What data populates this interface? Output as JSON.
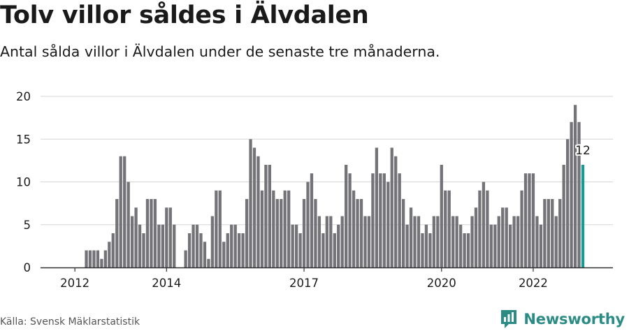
{
  "title": "Tolv villor såldes i Älvdalen",
  "subtitle": "Antal sålda villor i Älvdalen under de senaste tre månaderna.",
  "source": "Källa: Svensk Mäklarstatistik",
  "brand": {
    "name": "Newsworthy",
    "icon": "newsworthy-logo-icon"
  },
  "colors": {
    "bar": "#747378",
    "highlight": "#1a9a93",
    "grid": "#d6d6d6",
    "axis": "#333333",
    "brand": "#2b8c86"
  },
  "chart_data": {
    "type": "bar",
    "title": "",
    "xlabel": "",
    "ylabel": "",
    "ylim": [
      0,
      20
    ],
    "y_ticks": [
      "0",
      "5",
      "10",
      "15",
      "20"
    ],
    "x_tick_labels": [
      {
        "label": "2012",
        "index": 3
      },
      {
        "label": "2014",
        "index": 27
      },
      {
        "label": "2017",
        "index": 63
      },
      {
        "label": "2020",
        "index": 99
      },
      {
        "label": "2022",
        "index": 123
      }
    ],
    "grid": true,
    "values": [
      0,
      0,
      0,
      0,
      0,
      0,
      2,
      2,
      2,
      2,
      1,
      2,
      3,
      4,
      8,
      13,
      13,
      10,
      6,
      7,
      5,
      4,
      8,
      8,
      8,
      5,
      5,
      7,
      7,
      5,
      0,
      0,
      2,
      4,
      5,
      5,
      4,
      3,
      1,
      6,
      9,
      9,
      3,
      4,
      5,
      5,
      4,
      4,
      8,
      15,
      14,
      13,
      9,
      12,
      12,
      9,
      8,
      8,
      9,
      9,
      5,
      5,
      4,
      8,
      10,
      11,
      8,
      6,
      4,
      6,
      6,
      4,
      5,
      6,
      12,
      11,
      9,
      8,
      8,
      6,
      6,
      11,
      14,
      11,
      11,
      10,
      14,
      13,
      11,
      8,
      5,
      7,
      6,
      6,
      4,
      5,
      4,
      6,
      6,
      12,
      9,
      9,
      6,
      6,
      5,
      4,
      4,
      6,
      7,
      9,
      10,
      9,
      5,
      5,
      6,
      7,
      7,
      5,
      6,
      6,
      9,
      11,
      11,
      11,
      6,
      5,
      8,
      8,
      8,
      6,
      8,
      12,
      15,
      17,
      19,
      17,
      12
    ],
    "highlight_index": 136,
    "highlight_label": "12"
  }
}
